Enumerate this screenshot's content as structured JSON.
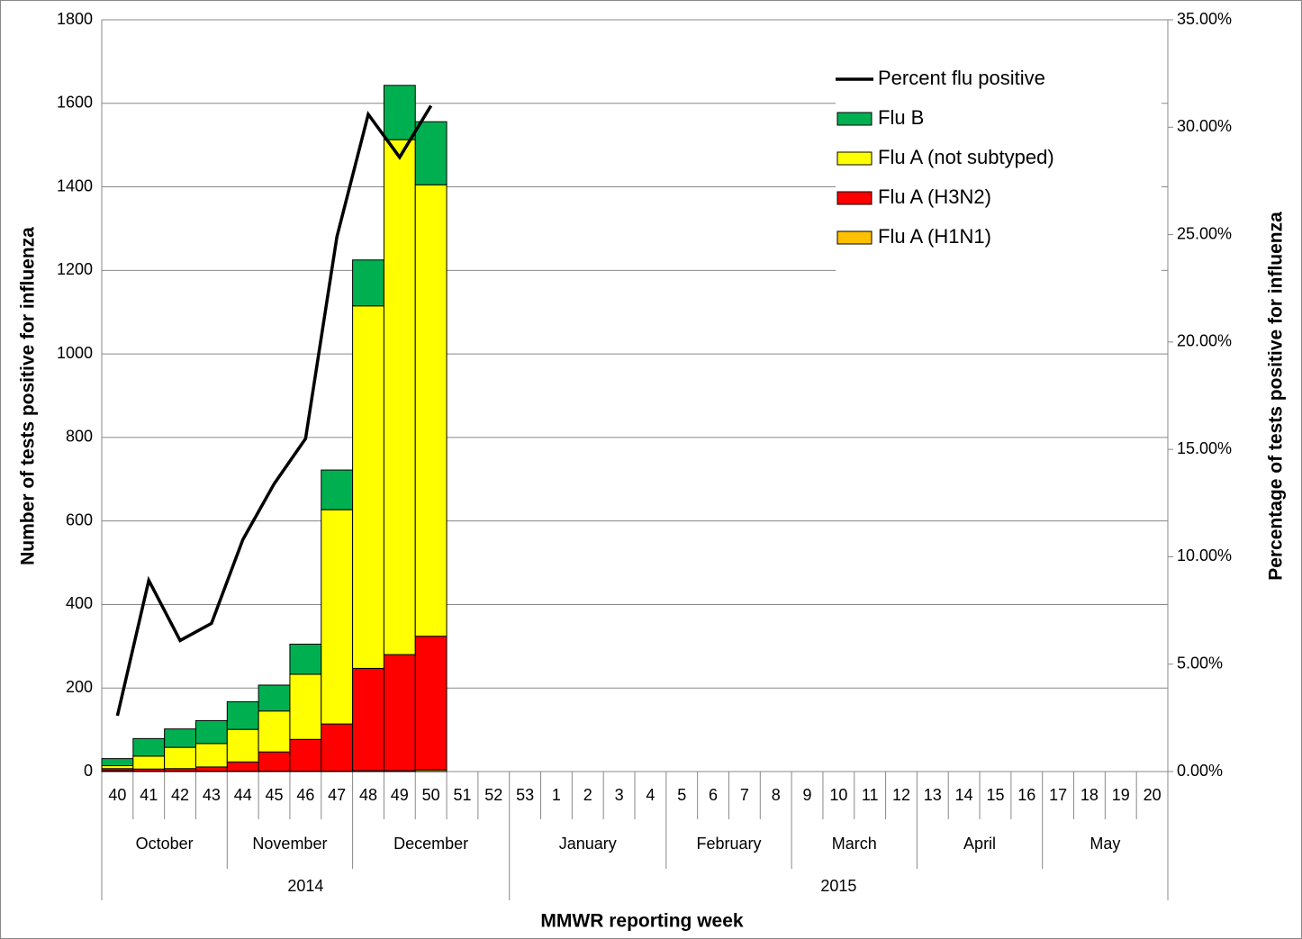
{
  "chart_data": {
    "type": "bar",
    "stacked": true,
    "x_label": "MMWR reporting week",
    "y_label": "Number of tests positive for influenza",
    "y2_label": "Percentage of  tests positive for influenza",
    "categories": [
      "40",
      "41",
      "42",
      "43",
      "44",
      "45",
      "46",
      "47",
      "48",
      "49",
      "50",
      "51",
      "52",
      "53",
      "1",
      "2",
      "3",
      "4",
      "5",
      "6",
      "7",
      "8",
      "9",
      "10",
      "11",
      "12",
      "13",
      "14",
      "15",
      "16",
      "17",
      "18",
      "19",
      "20"
    ],
    "month_labels": [
      "October",
      null,
      null,
      null,
      "November",
      null,
      null,
      null,
      "December",
      null,
      null,
      null,
      null,
      "January",
      null,
      null,
      null,
      null,
      "February",
      null,
      null,
      null,
      "March",
      null,
      null,
      null,
      "April",
      null,
      null,
      null,
      "May",
      null,
      null,
      null
    ],
    "year_labels": [
      "2014",
      null,
      null,
      null,
      null,
      null,
      null,
      null,
      null,
      null,
      null,
      null,
      null,
      "2015",
      null,
      null,
      null,
      null,
      null,
      null,
      null,
      null,
      null,
      null,
      null,
      null,
      null,
      null,
      null,
      null,
      null,
      null,
      null,
      null
    ],
    "series": [
      {
        "name": "Flu A (H1N1)",
        "type": "bar",
        "color": "#ffc000",
        "values": [
          2,
          1,
          1,
          1,
          1,
          1,
          1,
          1,
          2,
          2,
          4,
          null,
          null,
          null,
          null,
          null,
          null,
          null,
          null,
          null,
          null,
          null,
          null,
          null,
          null,
          null,
          null,
          null,
          null,
          null,
          null,
          null,
          null,
          null
        ]
      },
      {
        "name": "Flu A (H3N2)",
        "type": "bar",
        "color": "#ff0000",
        "values": [
          5,
          5,
          6,
          10,
          22,
          46,
          76,
          113,
          245,
          278,
          320,
          null,
          null,
          null,
          null,
          null,
          null,
          null,
          null,
          null,
          null,
          null,
          null,
          null,
          null,
          null,
          null,
          null,
          null,
          null,
          null,
          null,
          null,
          null
        ]
      },
      {
        "name": "Flu A (not subtyped)",
        "type": "bar",
        "color": "#ffff00",
        "values": [
          7,
          31,
          51,
          56,
          78,
          98,
          156,
          513,
          868,
          1233,
          1081,
          null,
          null,
          null,
          null,
          null,
          null,
          null,
          null,
          null,
          null,
          null,
          null,
          null,
          null,
          null,
          null,
          null,
          null,
          null,
          null,
          null,
          null,
          null
        ]
      },
      {
        "name": "Flu B",
        "type": "bar",
        "color": "#00b050",
        "values": [
          17,
          42,
          44,
          55,
          66,
          62,
          72,
          95,
          110,
          130,
          151,
          null,
          null,
          null,
          null,
          null,
          null,
          null,
          null,
          null,
          null,
          null,
          null,
          null,
          null,
          null,
          null,
          null,
          null,
          null,
          null,
          null,
          null,
          null
        ]
      },
      {
        "name": "Percent flu positive",
        "type": "line",
        "axis": "y2",
        "color": "#000000",
        "values": [
          2.6,
          8.9,
          6.1,
          6.9,
          10.8,
          13.4,
          15.5,
          24.9,
          30.6,
          28.6,
          31.0,
          null,
          null,
          null,
          null,
          null,
          null,
          null,
          null,
          null,
          null,
          null,
          null,
          null,
          null,
          null,
          null,
          null,
          null,
          null,
          null,
          null,
          null,
          null
        ]
      }
    ],
    "ylim": [
      0,
      1800
    ],
    "yticks": [
      0,
      200,
      400,
      600,
      800,
      1000,
      1200,
      1400,
      1600,
      1800
    ],
    "y2lim": [
      0,
      35
    ],
    "y2ticks": [
      {
        "value": 0,
        "label": "0.00%"
      },
      {
        "value": 5,
        "label": "5.00%"
      },
      {
        "value": 10,
        "label": "10.00%"
      },
      {
        "value": 15,
        "label": "15.00%"
      },
      {
        "value": 20,
        "label": "20.00%"
      },
      {
        "value": 25,
        "label": "25.00%"
      },
      {
        "value": 30,
        "label": "30.00%"
      },
      {
        "value": 35,
        "label": "35.00%"
      }
    ],
    "grid": true,
    "legend": "top-right"
  }
}
